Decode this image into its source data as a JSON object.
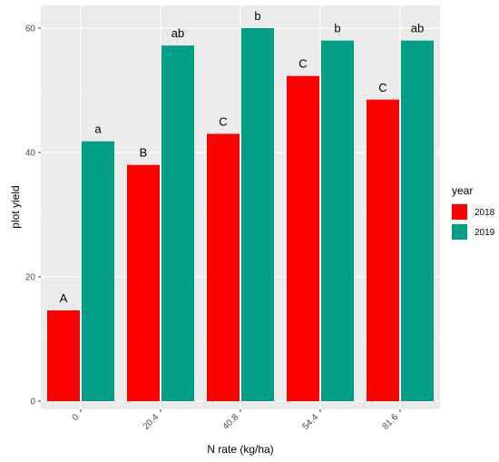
{
  "chart_data": {
    "type": "bar",
    "xlabel": "N rate (kg/ha)",
    "ylabel": "plot yield",
    "categories": [
      "0",
      "20.4",
      "40.8",
      "54.4",
      "81.6"
    ],
    "ylim": [
      0,
      62.3
    ],
    "yticks": [
      0,
      20,
      40,
      60
    ],
    "grid": true,
    "legend": {
      "title": "year",
      "position": "right"
    },
    "series": [
      {
        "name": "2018",
        "color": "#ff0000",
        "values": [
          14.6,
          38.0,
          43.0,
          52.3,
          48.5
        ],
        "labels": [
          "A",
          "B",
          "C",
          "C",
          "C"
        ]
      },
      {
        "name": "2019",
        "color": "#009e87",
        "values": [
          41.8,
          57.2,
          60.0,
          58.0,
          58.0
        ],
        "labels": [
          "a",
          "ab",
          "b",
          "b",
          "ab"
        ]
      }
    ]
  }
}
